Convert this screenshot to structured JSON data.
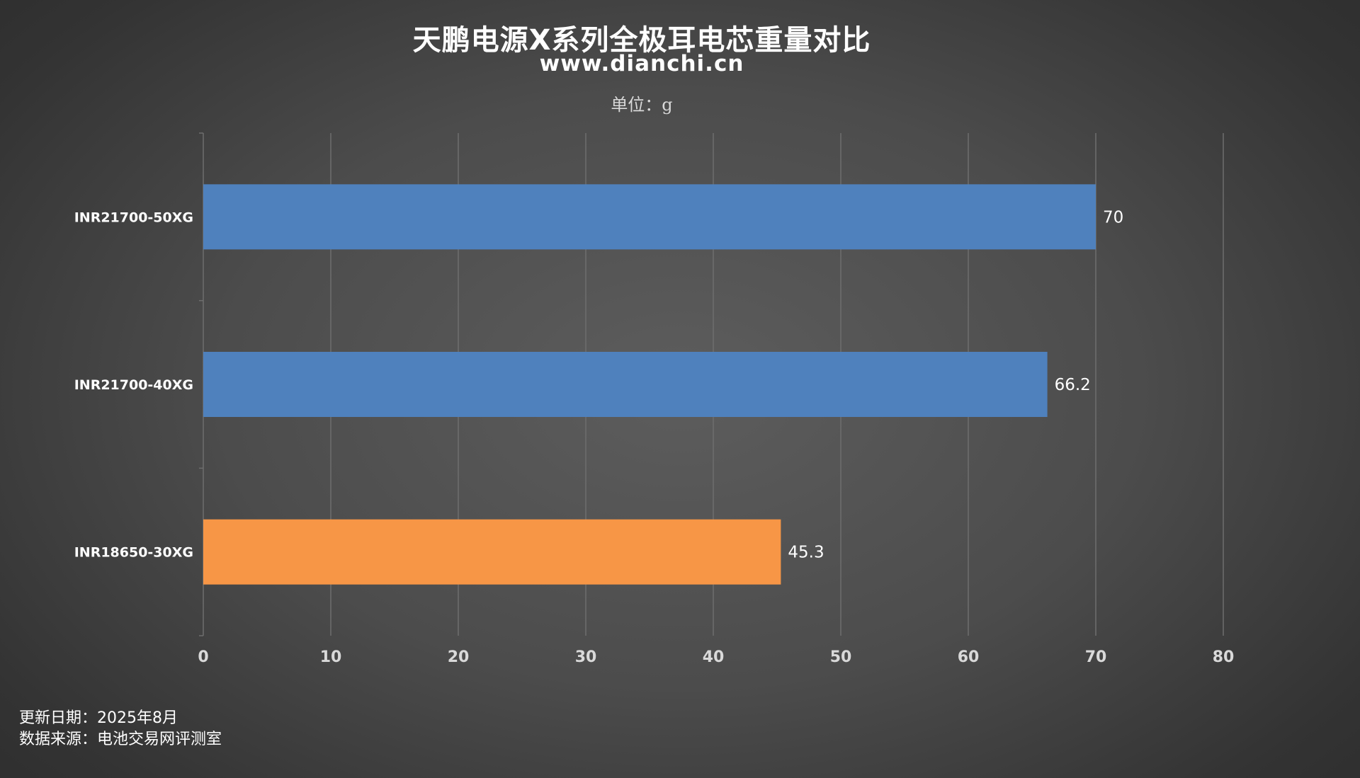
{
  "header": {
    "title": "天鹏电源X系列全极耳电芯重量对比",
    "subtitle": "www.dianchi.cn",
    "unit": "单位：g"
  },
  "footer": {
    "update": "更新日期：2025年8月",
    "source": "数据来源：电池交易网评测室"
  },
  "chart_data": {
    "type": "bar",
    "orientation": "horizontal",
    "title": "天鹏电源X系列全极耳电芯重量对比",
    "subtitle": "www.dianchi.cn",
    "unit": "g",
    "categories": [
      "INR21700-50XG",
      "INR21700-40XG",
      "INR18650-30XG"
    ],
    "values": [
      70,
      66.2,
      45.3
    ],
    "value_labels": [
      "70",
      "66.2",
      "45.3"
    ],
    "bar_colors": [
      "#4f81bd",
      "#4f81bd",
      "#f79646"
    ],
    "xlim": [
      0,
      80
    ],
    "xticks": [
      0,
      10,
      20,
      30,
      40,
      50,
      60,
      70,
      80
    ],
    "grid": "vertical",
    "legend": "none"
  },
  "colors": {
    "gridline": "#6e6e6e",
    "axis_text": "#d9d9d9",
    "category_text": "#ffffff",
    "value_text": "#ffffff"
  }
}
